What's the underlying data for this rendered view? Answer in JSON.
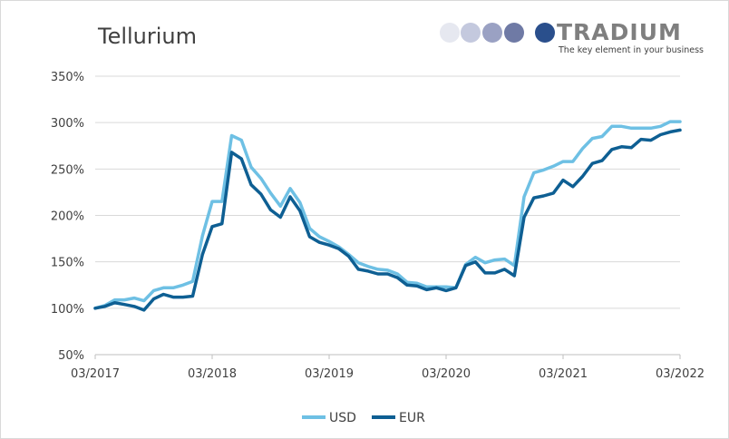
{
  "logo": {
    "name": "TRADIUM",
    "tagline": "The key element in your business",
    "dot_colors": [
      "#e6e8f0",
      "#c4c9de",
      "#9aa1c3",
      "#6f7aa5",
      "#2a4f8c"
    ]
  },
  "chart_data": {
    "type": "line",
    "title": "Tellurium",
    "xlabel": "",
    "ylabel": "",
    "x_ticks": [
      "03/2017",
      "03/2018",
      "03/2019",
      "03/2020",
      "03/2021",
      "03/2022"
    ],
    "y_ticks": [
      "50%",
      "100%",
      "150%",
      "200%",
      "250%",
      "300%",
      "350%"
    ],
    "ylim": [
      50,
      350
    ],
    "x_range_months": [
      "03/2017",
      "03/2022"
    ],
    "grid": "horizontal",
    "legend_position": "bottom",
    "series": [
      {
        "name": "USD",
        "color": "#6ec0e4",
        "values": [
          100,
          103,
          109,
          109,
          111,
          108,
          119,
          122,
          122,
          125,
          129,
          178,
          215,
          215,
          286,
          281,
          252,
          240,
          224,
          210,
          229,
          214,
          186,
          177,
          172,
          166,
          158,
          149,
          145,
          142,
          141,
          137,
          128,
          127,
          123,
          123,
          123,
          122,
          147,
          155,
          149,
          152,
          153,
          146,
          220,
          246,
          249,
          253,
          258,
          258,
          272,
          283,
          285,
          296,
          296,
          294,
          294,
          294,
          296,
          301,
          301
        ]
      },
      {
        "name": "EUR",
        "color": "#0e5f93",
        "values": [
          100,
          102,
          106,
          104,
          102,
          98,
          110,
          115,
          112,
          112,
          113,
          158,
          188,
          191,
          268,
          261,
          233,
          223,
          206,
          198,
          220,
          205,
          177,
          171,
          168,
          164,
          156,
          142,
          140,
          137,
          137,
          133,
          125,
          124,
          120,
          122,
          119,
          122,
          146,
          150,
          138,
          138,
          142,
          135,
          198,
          219,
          221,
          224,
          238,
          231,
          242,
          256,
          259,
          271,
          274,
          273,
          282,
          281,
          287,
          290,
          292
        ]
      }
    ]
  }
}
